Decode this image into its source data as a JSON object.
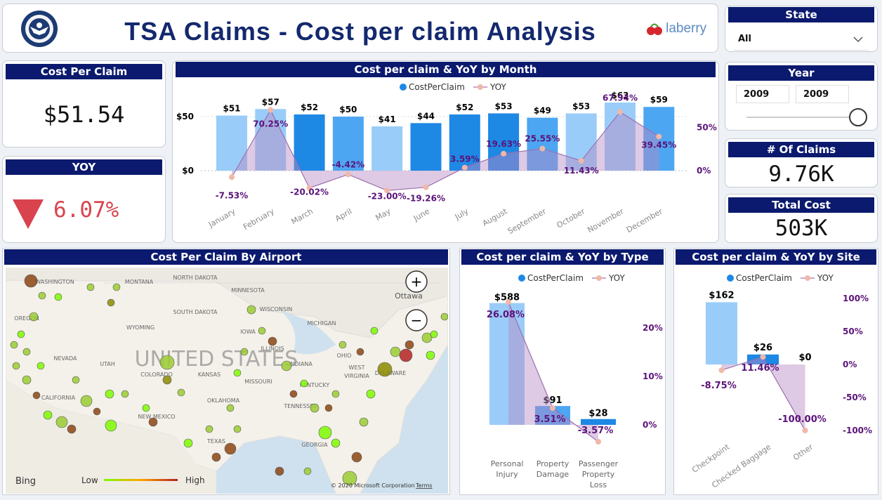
{
  "header": {
    "title": "TSA Claims - Cost per claim Analysis",
    "brand": "laberry",
    "seal_alt": "TSA seal"
  },
  "filters": {
    "state_label": "State",
    "state_value": "All",
    "year_label": "Year",
    "year_from": "2009",
    "year_to": "2009"
  },
  "kpis": {
    "cost_per_claim_label": "Cost Per Claim",
    "cost_per_claim": "$51.54",
    "yoy_label": "YOY",
    "yoy": "6.07%",
    "claims_label": "# Of Claims",
    "claims": "9.76K",
    "total_cost_label": "Total Cost",
    "total_cost": "503K"
  },
  "map": {
    "title": "Cost Per Claim By Airport",
    "country_label": "UNITED STATES",
    "bing": "Bing",
    "low": "Low",
    "high": "High",
    "copyright": "© 2020 Microsoft Corporation",
    "terms": "Terms",
    "ottawa": "Ottawa",
    "states": [
      "WASHINGTON",
      "MONTANA",
      "NORTH DAKOTA",
      "MINNESOTA",
      "OREGON",
      "SOUTH DAKOTA",
      "WISCONSIN",
      "WYOMING",
      "IOWA",
      "MICHIGAN",
      "NEVADA",
      "UTAH",
      "ILLINOIS",
      "INDIANA",
      "OHIO",
      "COLORADO",
      "KANSAS",
      "MISSOURI",
      "WEST",
      "VIRGINIA",
      "DELAWARE",
      "CALIFORNIA",
      "KENTUCKY",
      "OKLAHOMA",
      "TENNESSEE",
      "NEW MEXICO",
      "TEXAS",
      "GEORGIA"
    ]
  },
  "chart_data": [
    {
      "type": "bar",
      "title": "Cost per claim & YoY by Month",
      "legend": [
        "CostPerClaim",
        "YOY"
      ],
      "categories": [
        "January",
        "February",
        "March",
        "April",
        "May",
        "June",
        "July",
        "August",
        "September",
        "October",
        "November",
        "December"
      ],
      "series": [
        {
          "name": "CostPerClaim",
          "values": [
            51,
            57,
            52,
            50,
            41,
            44,
            52,
            53,
            49,
            53,
            63,
            59
          ]
        },
        {
          "name": "YOY",
          "values": [
            -7.53,
            70.25,
            -20.02,
            -4.42,
            -23.0,
            -19.26,
            3.59,
            19.63,
            25.55,
            11.43,
            67.94,
            39.45
          ]
        }
      ],
      "bar_labels": [
        "$51",
        "$57",
        "$52",
        "$50",
        "$41",
        "$44",
        "$52",
        "$53",
        "$49",
        "$53",
        "$63",
        "$59"
      ],
      "line_labels": [
        "-7.53%",
        "70.25%",
        "-20.02%",
        "-4.42%",
        "-23.00%",
        "-19.26%",
        "3.59%",
        "19.63%",
        "25.55%",
        "11.43%",
        "67.94%",
        "39.45%"
      ],
      "y_ticks": [
        "$50",
        "$0"
      ],
      "y2_ticks": [
        "50%",
        "0%"
      ],
      "ylim": [
        0,
        65
      ],
      "y2lim": [
        -40,
        80
      ]
    },
    {
      "type": "bar",
      "title": "Cost per claim & YoY by Type",
      "legend": [
        "CostPerClaim",
        "YOY"
      ],
      "categories": [
        "Personal Injury",
        "Property Damage",
        "Passenger Property Loss"
      ],
      "category_lines": [
        [
          "Personal",
          "Injury"
        ],
        [
          "Property",
          "Damage"
        ],
        [
          "Passenger",
          "Property",
          "Loss"
        ]
      ],
      "series": [
        {
          "name": "CostPerClaim",
          "values": [
            588,
            91,
            28
          ]
        },
        {
          "name": "YOY",
          "values": [
            26.08,
            3.51,
            -3.57
          ]
        }
      ],
      "bar_labels": [
        "$588",
        "$91",
        "$28"
      ],
      "line_labels": [
        "26.08%",
        "3.51%",
        "-3.57%"
      ],
      "y2_ticks": [
        "20%",
        "10%",
        "0%"
      ],
      "ylim": [
        0,
        600
      ],
      "y2lim": [
        -5,
        28
      ]
    },
    {
      "type": "bar",
      "title": "Cost per claim & YoY by Site",
      "legend": [
        "CostPerClaim",
        "YOY"
      ],
      "categories": [
        "Checkpoint",
        "Checked Baggage",
        "Other"
      ],
      "series": [
        {
          "name": "CostPerClaim",
          "values": [
            162,
            26,
            0
          ]
        },
        {
          "name": "YOY",
          "values": [
            -8.75,
            11.46,
            -100.0
          ]
        }
      ],
      "bar_labels": [
        "$162",
        "$26",
        "$0"
      ],
      "line_labels": [
        "-8.75%",
        "11.46%",
        "-100.00%"
      ],
      "y2_ticks": [
        "100%",
        "50%",
        "0%",
        "-50%",
        "-100%"
      ],
      "ylim": [
        0,
        170
      ],
      "y2lim": [
        -100,
        100
      ]
    }
  ],
  "colors": {
    "navy": "#0b1a6e",
    "bar_light": "#99ccf8",
    "bar_mid": "#4da6f2",
    "bar_dark": "#1e88e5",
    "yoy_area": "#b58ac4",
    "yoy_dot": "#f0b8a8",
    "label_purple": "#5b137a",
    "down_red": "#d9434e"
  }
}
